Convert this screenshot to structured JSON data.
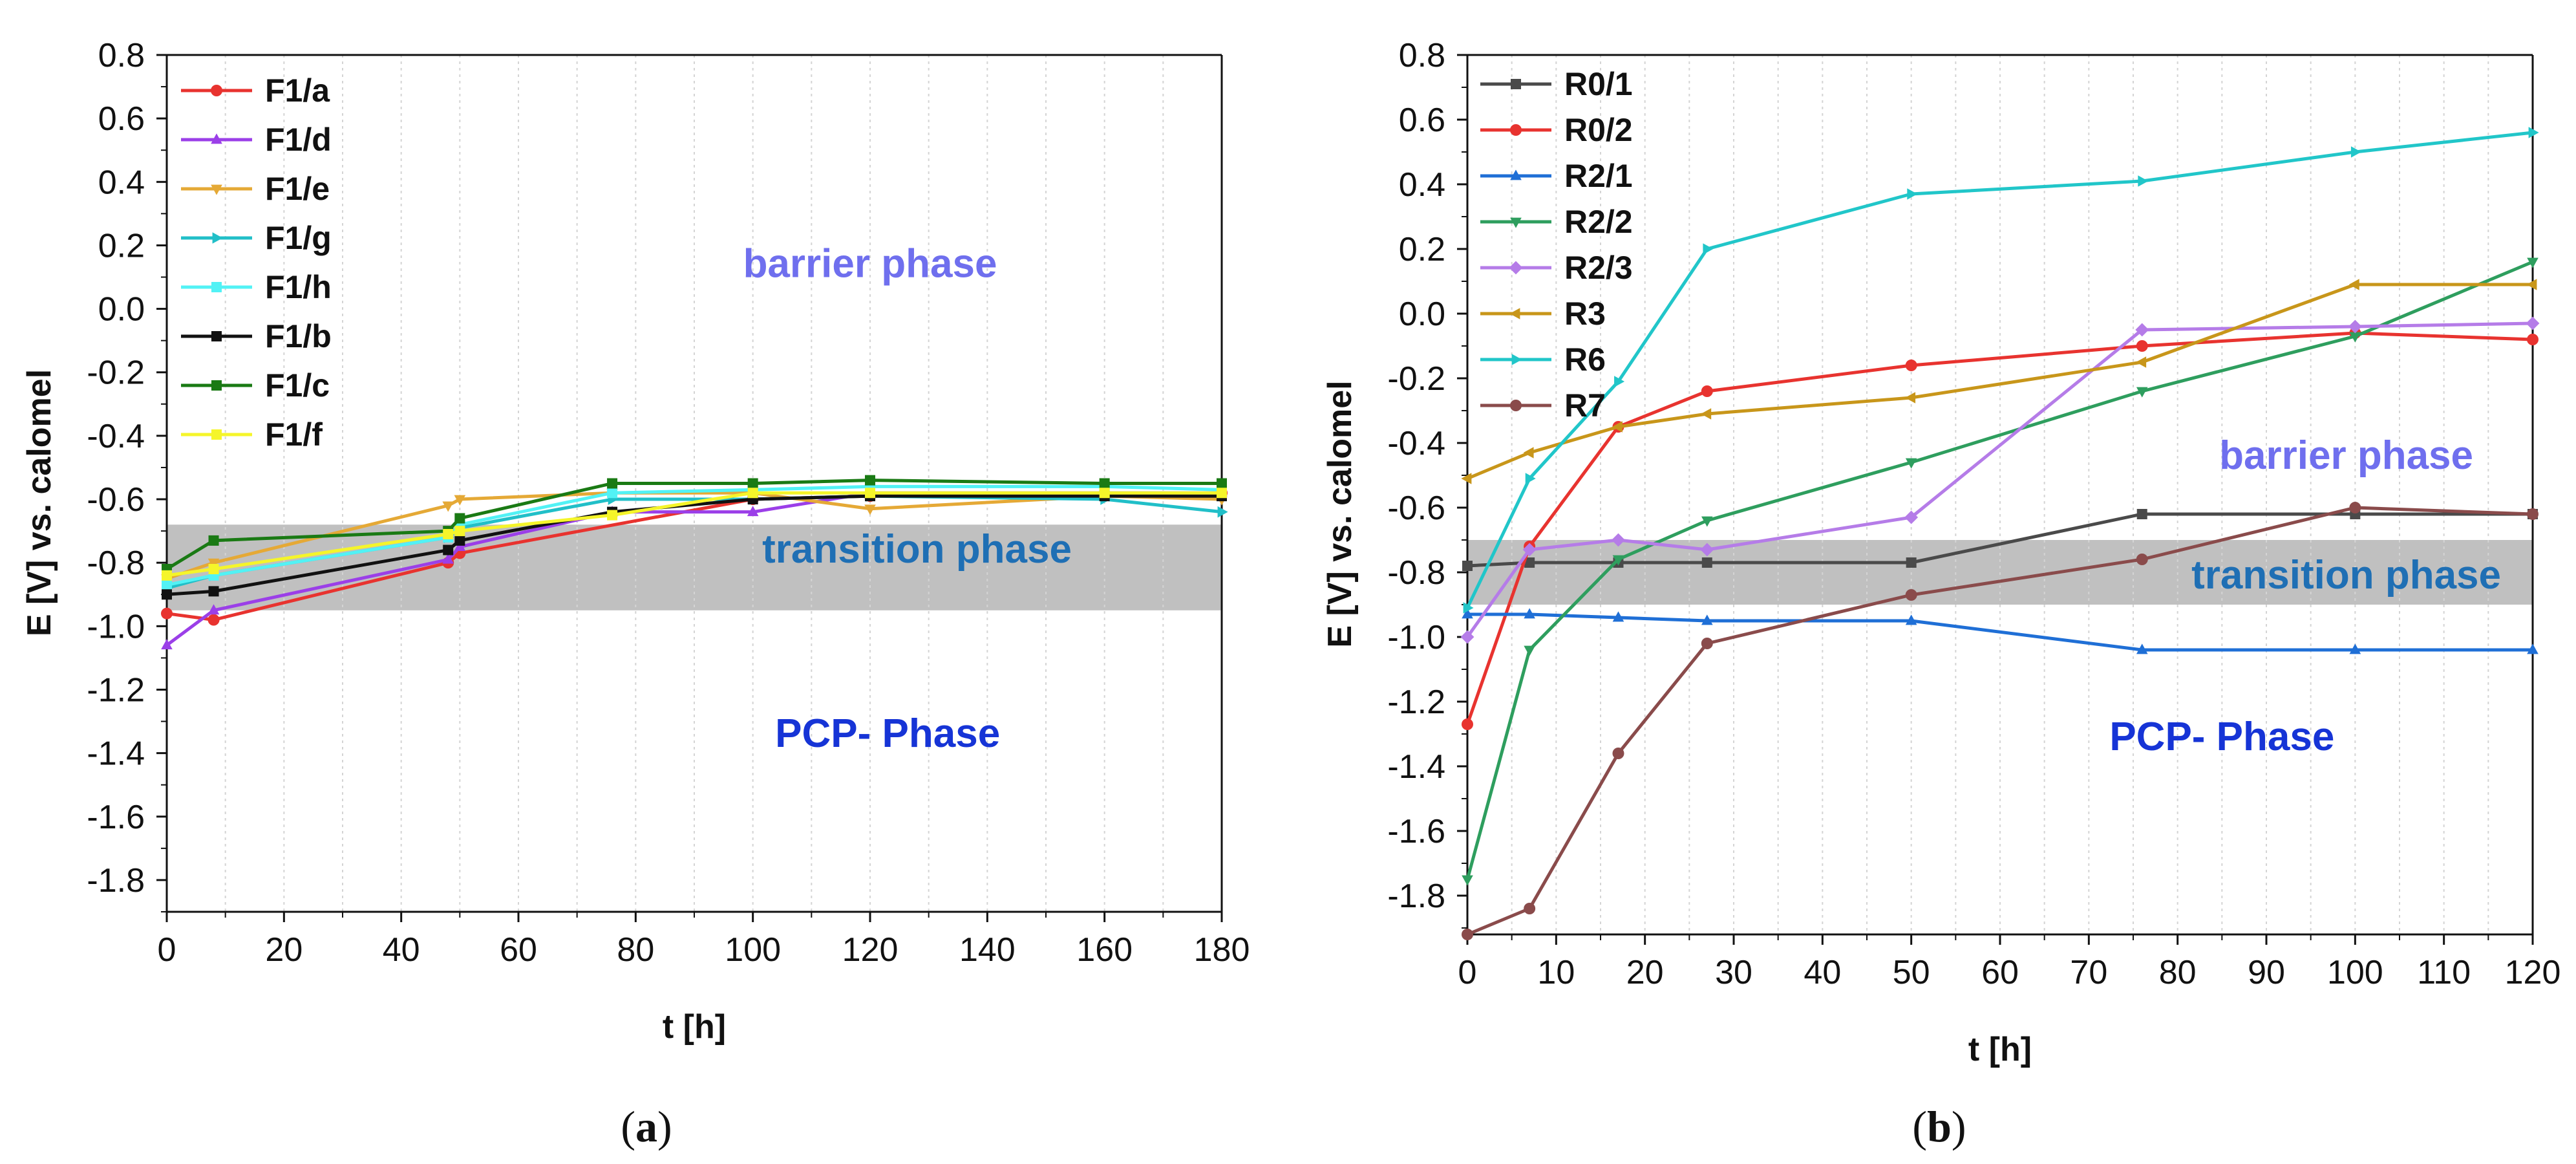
{
  "chart_data": [
    {
      "panel": "a",
      "caption_letter": "a",
      "type": "line",
      "xlabel": "t [h]",
      "ylabel": "E [V] vs. calomel",
      "xlim": [
        0,
        180
      ],
      "ylim": [
        -1.9,
        0.8
      ],
      "xticks": [
        0,
        20,
        40,
        60,
        80,
        100,
        120,
        140,
        160,
        180
      ],
      "yticks": [
        0.8,
        0.6,
        0.4,
        0.2,
        0.0,
        -0.2,
        -0.4,
        -0.6,
        -0.8,
        -1.0,
        -1.2,
        -1.4,
        -1.6,
        -1.8
      ],
      "ytick_labels": [
        "0.8",
        "0.6",
        "0.4",
        "0.2",
        "0.0",
        "-0.2",
        "-0.4",
        "-0.6",
        "-0.8",
        "-1.0",
        "-1.2",
        "-1.4",
        "-1.6",
        "-1.8"
      ],
      "band": [
        -0.95,
        -0.68
      ],
      "legend_position": "top-left",
      "annotations": [
        {
          "text": "barrier phase",
          "x": 120,
          "y": 0.1,
          "color": "#6f6fee"
        },
        {
          "text": "transition phase",
          "x": 128,
          "y": -0.8,
          "color": "#1f6fb4"
        },
        {
          "text": "PCP- Phase",
          "x": 123,
          "y": -1.38,
          "color": "#1634d6"
        }
      ],
      "series": [
        {
          "name": "F1/a",
          "color": "#e8332f",
          "marker": "circle",
          "x": [
            0,
            8,
            48,
            50,
            100,
            120,
            160,
            180
          ],
          "values": [
            -0.96,
            -0.98,
            -0.8,
            -0.77,
            -0.6,
            -0.59,
            -0.59,
            -0.58
          ]
        },
        {
          "name": "F1/d",
          "color": "#9b3fe8",
          "marker": "triangle-up",
          "x": [
            0,
            8,
            48,
            50,
            76,
            100,
            120,
            160,
            180
          ],
          "values": [
            -1.06,
            -0.95,
            -0.79,
            -0.75,
            -0.64,
            -0.64,
            -0.58,
            -0.58,
            -0.58
          ]
        },
        {
          "name": "F1/e",
          "color": "#e5a936",
          "marker": "triangle-down",
          "x": [
            0,
            8,
            48,
            50,
            76,
            100,
            120,
            160,
            180
          ],
          "values": [
            -0.85,
            -0.8,
            -0.62,
            -0.6,
            -0.58,
            -0.58,
            -0.63,
            -0.59,
            -0.6
          ]
        },
        {
          "name": "F1/g",
          "color": "#21bfc8",
          "marker": "triangle-right",
          "x": [
            0,
            8,
            48,
            50,
            76,
            100,
            120,
            160,
            180
          ],
          "values": [
            -0.88,
            -0.84,
            -0.72,
            -0.69,
            -0.6,
            -0.6,
            -0.59,
            -0.6,
            -0.64
          ]
        },
        {
          "name": "F1/h",
          "color": "#52f2f5",
          "marker": "square",
          "x": [
            0,
            8,
            48,
            50,
            76,
            100,
            120,
            160,
            180
          ],
          "values": [
            -0.87,
            -0.84,
            -0.72,
            -0.68,
            -0.58,
            -0.57,
            -0.56,
            -0.56,
            -0.57
          ]
        },
        {
          "name": "F1/b",
          "color": "#111111",
          "marker": "square",
          "x": [
            0,
            8,
            48,
            50,
            76,
            100,
            120,
            160,
            180
          ],
          "values": [
            -0.9,
            -0.89,
            -0.76,
            -0.73,
            -0.64,
            -0.6,
            -0.59,
            -0.59,
            -0.59
          ]
        },
        {
          "name": "F1/c",
          "color": "#1a7a14",
          "marker": "square",
          "x": [
            0,
            8,
            48,
            50,
            76,
            100,
            120,
            160,
            180
          ],
          "values": [
            -0.82,
            -0.73,
            -0.7,
            -0.66,
            -0.55,
            -0.55,
            -0.54,
            -0.55,
            -0.55
          ]
        },
        {
          "name": "F1/f",
          "color": "#f5f52a",
          "marker": "square",
          "x": [
            0,
            8,
            48,
            50,
            76,
            100,
            120,
            160,
            180
          ],
          "values": [
            -0.84,
            -0.82,
            -0.71,
            -0.7,
            -0.65,
            -0.58,
            -0.58,
            -0.58,
            -0.58
          ]
        }
      ]
    },
    {
      "panel": "b",
      "caption_letter": "b",
      "type": "line",
      "xlabel": "t [h]",
      "ylabel": "E [V] vs. calomel",
      "xlim": [
        0,
        120
      ],
      "ylim": [
        -1.92,
        0.8
      ],
      "xticks": [
        0,
        10,
        20,
        30,
        40,
        50,
        60,
        70,
        80,
        90,
        100,
        110,
        120
      ],
      "yticks": [
        0.8,
        0.6,
        0.4,
        0.2,
        0.0,
        -0.2,
        -0.4,
        -0.6,
        -0.8,
        -1.0,
        -1.2,
        -1.4,
        -1.6,
        -1.8
      ],
      "ytick_labels": [
        "0.8",
        "0.6",
        "0.4",
        "0.2",
        "0.0",
        "-0.2",
        "-0.4",
        "-0.6",
        "-0.8",
        "-1.0",
        "-1.2",
        "-1.4",
        "-1.6",
        "-1.8"
      ],
      "band": [
        -0.9,
        -0.7
      ],
      "legend_position": "top-left",
      "annotations": [
        {
          "text": "barrier phase",
          "x": 99,
          "y": -0.48,
          "color": "#6f6fee"
        },
        {
          "text": "transition phase",
          "x": 99,
          "y": -0.85,
          "color": "#1f6fb4"
        },
        {
          "text": "PCP- Phase",
          "x": 85,
          "y": -1.35,
          "color": "#1634d6"
        }
      ],
      "series": [
        {
          "name": "R0/1",
          "color": "#4a4a4a",
          "marker": "square",
          "x": [
            0,
            7,
            17,
            27,
            50,
            76,
            100,
            120
          ],
          "values": [
            -0.78,
            -0.77,
            -0.77,
            -0.77,
            -0.77,
            -0.62,
            -0.62,
            -0.62
          ]
        },
        {
          "name": "R0/2",
          "color": "#e8332f",
          "marker": "circle",
          "x": [
            0,
            7,
            17,
            27,
            50,
            76,
            100,
            120
          ],
          "values": [
            -1.27,
            -0.72,
            -0.35,
            -0.24,
            -0.16,
            -0.1,
            -0.06,
            -0.08
          ]
        },
        {
          "name": "R2/1",
          "color": "#1f6fd6",
          "marker": "triangle-up",
          "x": [
            0,
            7,
            17,
            27,
            50,
            76,
            100,
            120
          ],
          "values": [
            -0.93,
            -0.93,
            -0.94,
            -0.95,
            -0.95,
            -1.04,
            -1.04,
            -1.04
          ]
        },
        {
          "name": "R2/2",
          "color": "#2e9e5e",
          "marker": "triangle-down",
          "x": [
            0,
            7,
            17,
            27,
            50,
            76,
            100,
            120
          ],
          "values": [
            -1.75,
            -1.04,
            -0.76,
            -0.64,
            -0.46,
            -0.24,
            -0.07,
            0.16
          ]
        },
        {
          "name": "R2/3",
          "color": "#b57ce8",
          "marker": "diamond",
          "x": [
            0,
            7,
            17,
            27,
            50,
            76,
            100,
            120
          ],
          "values": [
            -1.0,
            -0.73,
            -0.7,
            -0.73,
            -0.63,
            -0.05,
            -0.04,
            -0.03
          ]
        },
        {
          "name": "R3",
          "color": "#c8961a",
          "marker": "triangle-left",
          "x": [
            0,
            7,
            17,
            27,
            50,
            76,
            100,
            120
          ],
          "values": [
            -0.51,
            -0.43,
            -0.35,
            -0.31,
            -0.26,
            -0.15,
            0.09,
            0.09
          ]
        },
        {
          "name": "R6",
          "color": "#21c6c9",
          "marker": "triangle-right",
          "x": [
            0,
            7,
            17,
            27,
            50,
            76,
            100,
            120
          ],
          "values": [
            -0.91,
            -0.51,
            -0.21,
            0.2,
            0.37,
            0.41,
            0.5,
            0.56
          ]
        },
        {
          "name": "R7",
          "color": "#8a4b4b",
          "marker": "circle",
          "x": [
            0,
            7,
            17,
            27,
            50,
            76,
            100,
            120
          ],
          "values": [
            -1.92,
            -1.84,
            -1.36,
            -1.02,
            -0.87,
            -0.76,
            -0.6,
            -0.62
          ]
        }
      ]
    }
  ]
}
